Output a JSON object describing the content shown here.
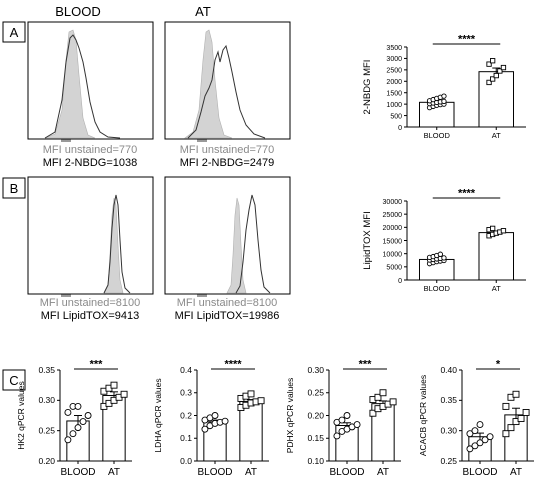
{
  "histograms": {
    "col_headers": [
      "BLOOD",
      "AT"
    ],
    "rows": [
      {
        "labels": [
          {
            "unstained": "MFI unstained=770",
            "stained": "MFI 2-NBDG=1038"
          },
          {
            "unstained": "MFI unstained=770",
            "stained": "MFI 2-NBDG=2479"
          }
        ]
      },
      {
        "labels": [
          {
            "unstained": "MFI unstained=8100",
            "stained": "MFI LipidTOX=9413"
          },
          {
            "unstained": "MFI unstained=8100",
            "stained": "MFI LipidTOX=19986"
          }
        ]
      }
    ]
  },
  "panel_labels": [
    "A",
    "B",
    "C"
  ],
  "chart_data": [
    {
      "id": "chartA",
      "panel": "A",
      "type": "bar",
      "ylabel": "2-NBDG MFI",
      "ylim": [
        0,
        3500
      ],
      "yticks": [
        0,
        500,
        1000,
        1500,
        2000,
        2500,
        3000,
        3500
      ],
      "categories": [
        "BLOOD",
        "AT"
      ],
      "values": [
        1080,
        2420
      ],
      "errors": [
        60,
        160
      ],
      "points": [
        [
          850,
          900,
          950,
          980,
          1000,
          1020,
          1050,
          1080,
          1100,
          1120,
          1150,
          1200,
          1250,
          1300,
          1350
        ],
        [
          1950,
          2100,
          2250,
          2450,
          2600,
          2750,
          2900
        ]
      ],
      "markers": [
        "circle",
        "square"
      ],
      "significance": "****"
    },
    {
      "id": "chartB",
      "panel": "B",
      "type": "bar",
      "ylabel": "LipidTOX MFI",
      "ylim": [
        0,
        30000
      ],
      "yticks": [
        0,
        5000,
        10000,
        15000,
        20000,
        25000,
        30000
      ],
      "categories": [
        "BLOOD",
        "AT"
      ],
      "values": [
        7800,
        18000
      ],
      "errors": [
        400,
        500
      ],
      "points": [
        [
          6200,
          6600,
          7000,
          7200,
          7400,
          7600,
          7800,
          8000,
          8200,
          8400,
          8600,
          8900,
          9300,
          9800
        ],
        [
          16800,
          17300,
          17800,
          18200,
          18700,
          19100,
          19600
        ]
      ],
      "markers": [
        "circle",
        "square"
      ],
      "significance": "****"
    },
    {
      "id": "chartC1",
      "panel": "C",
      "type": "bar",
      "ylabel": "HK2 qPCR values",
      "ylim": [
        0.2,
        0.35
      ],
      "yticks": [
        0.2,
        0.25,
        0.3,
        0.35
      ],
      "ytick_labels": [
        "0.20",
        "0.25",
        "0.30",
        "0.35"
      ],
      "categories": [
        "BLOOD",
        "AT"
      ],
      "values": [
        0.266,
        0.308
      ],
      "errors": [
        0.009,
        0.006
      ],
      "points": [
        [
          0.235,
          0.245,
          0.255,
          0.265,
          0.275,
          0.28,
          0.29,
          0.29
        ],
        [
          0.29,
          0.295,
          0.3,
          0.305,
          0.31,
          0.315,
          0.32,
          0.325
        ]
      ],
      "markers": [
        "circle",
        "square"
      ],
      "significance": "***"
    },
    {
      "id": "chartC2",
      "panel": "C",
      "type": "bar",
      "ylabel": "LDHA qPCR values",
      "ylim": [
        0,
        0.4
      ],
      "yticks": [
        0,
        0.1,
        0.2,
        0.3,
        0.4
      ],
      "ytick_labels": [
        "0.0",
        "0.1",
        "0.2",
        "0.3",
        "0.4"
      ],
      "categories": [
        "BLOOD",
        "AT"
      ],
      "values": [
        0.172,
        0.262
      ],
      "errors": [
        0.008,
        0.008
      ],
      "points": [
        [
          0.14,
          0.155,
          0.165,
          0.17,
          0.175,
          0.18,
          0.19,
          0.2
        ],
        [
          0.235,
          0.245,
          0.255,
          0.26,
          0.265,
          0.275,
          0.285,
          0.295
        ]
      ],
      "markers": [
        "circle",
        "square"
      ],
      "significance": "****"
    },
    {
      "id": "chartC3",
      "panel": "C",
      "type": "bar",
      "ylabel": "PDHX qPCR values",
      "ylim": [
        0.1,
        0.3
      ],
      "yticks": [
        0.1,
        0.15,
        0.2,
        0.25,
        0.3
      ],
      "ytick_labels": [
        "0.10",
        "0.15",
        "0.20",
        "0.25",
        "0.30"
      ],
      "categories": [
        "BLOOD",
        "AT"
      ],
      "values": [
        0.178,
        0.226
      ],
      "errors": [
        0.006,
        0.006
      ],
      "points": [
        [
          0.155,
          0.165,
          0.17,
          0.175,
          0.18,
          0.185,
          0.19,
          0.2
        ],
        [
          0.205,
          0.215,
          0.22,
          0.225,
          0.23,
          0.235,
          0.24,
          0.25
        ]
      ],
      "markers": [
        "circle",
        "square"
      ],
      "significance": "***"
    },
    {
      "id": "chartC4",
      "panel": "C",
      "type": "bar",
      "ylabel": "ACACB qPCR values",
      "ylim": [
        0.25,
        0.4
      ],
      "yticks": [
        0.25,
        0.3,
        0.35,
        0.4
      ],
      "ytick_labels": [
        "0.25",
        "0.30",
        "0.35",
        "0.40"
      ],
      "categories": [
        "BLOOD",
        "AT"
      ],
      "values": [
        0.29,
        0.326
      ],
      "errors": [
        0.006,
        0.011
      ],
      "points": [
        [
          0.27,
          0.275,
          0.28,
          0.285,
          0.29,
          0.295,
          0.3,
          0.31
        ],
        [
          0.295,
          0.305,
          0.315,
          0.32,
          0.33,
          0.34,
          0.355,
          0.36
        ]
      ],
      "markers": [
        "circle",
        "square"
      ],
      "significance": "*"
    }
  ]
}
